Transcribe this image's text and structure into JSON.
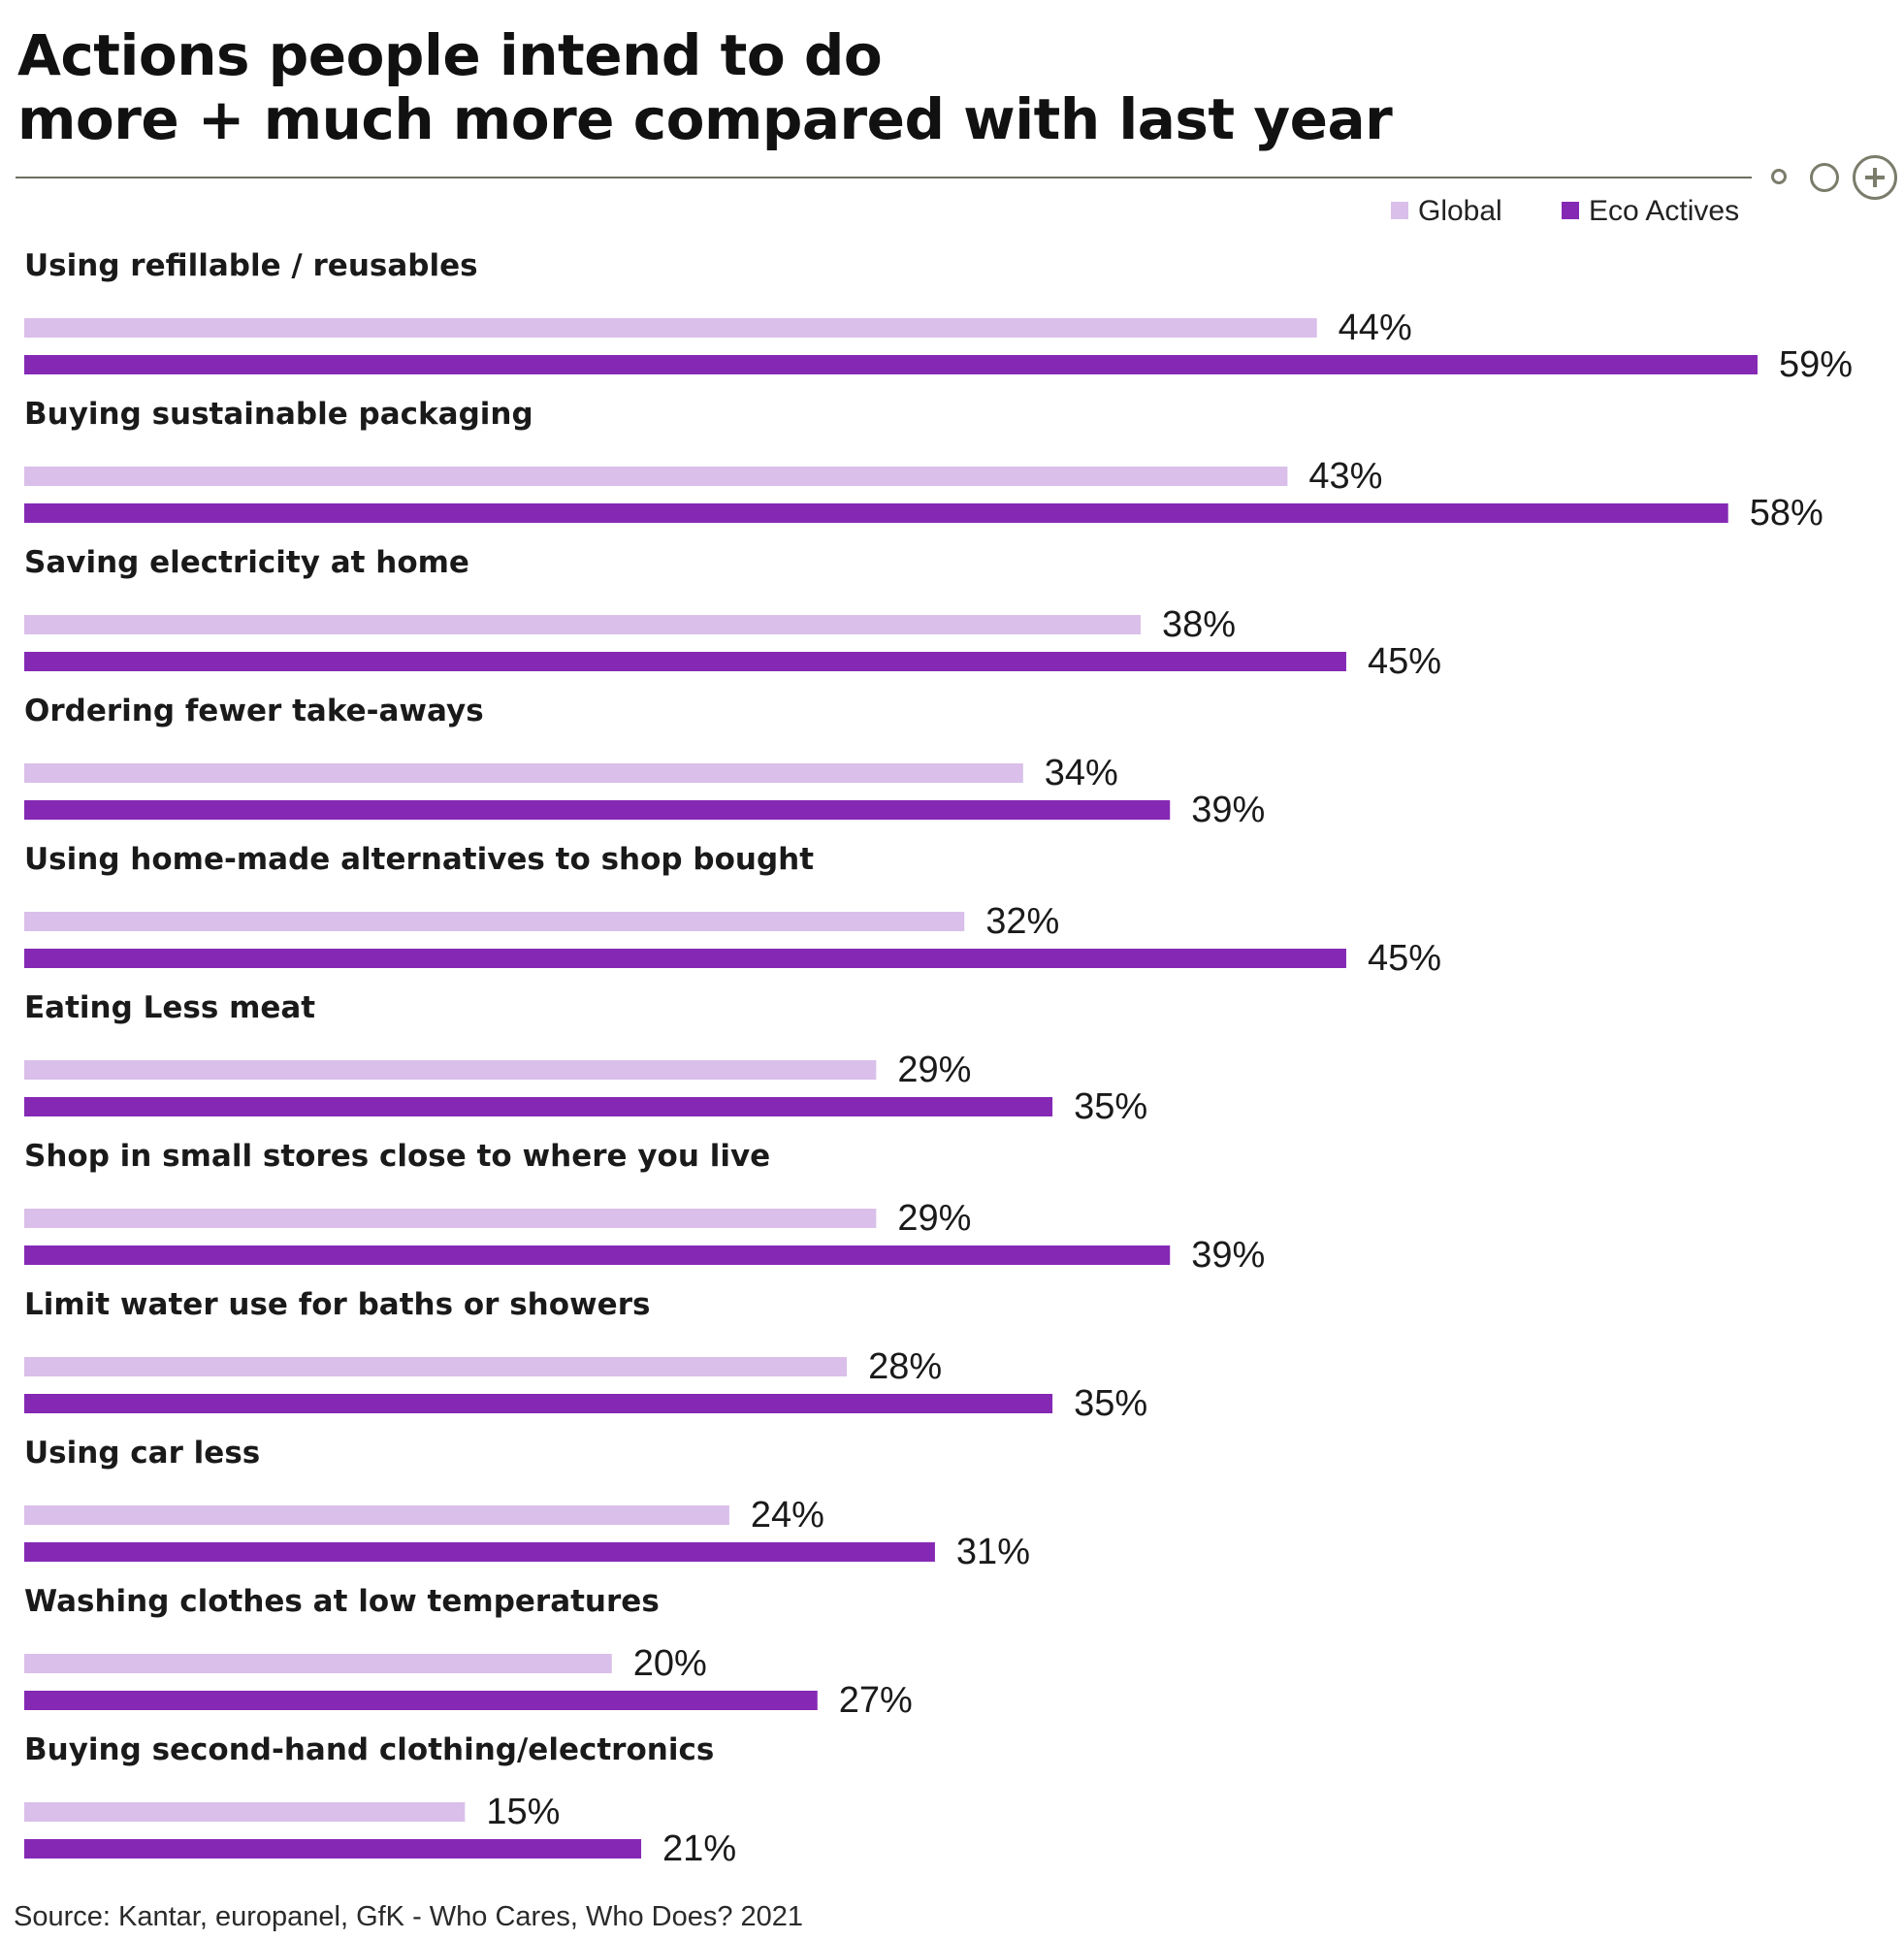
{
  "title_lines": [
    "Actions people intend to do",
    "more + much more compared with last year"
  ],
  "source": "Source: Kantar, europanel, GfK - Who Cares, Who Does? 2021",
  "colors": {
    "global": "#d9bfe9",
    "eco": "#8529b5",
    "text": "#1a1a1a"
  },
  "nav_icons": [
    "circle-small-icon",
    "circle-medium-icon",
    "plus-circle-icon"
  ],
  "chart_data": {
    "type": "bar",
    "orientation": "horizontal",
    "categories": [
      "Using refillable / reusables",
      "Buying sustainable packaging",
      "Saving electricity at home",
      "Ordering fewer take-aways",
      "Using home-made alternatives to shop bought",
      "Eating Less meat",
      "Shop in small stores close to where you live",
      "Limit water use for baths or showers",
      "Using car less",
      "Washing clothes at low temperatures",
      "Buying second-hand clothing/electronics"
    ],
    "series": [
      {
        "name": "Global",
        "values": [
          44,
          43,
          38,
          34,
          32,
          29,
          29,
          28,
          24,
          20,
          15
        ],
        "labels": [
          "44%",
          "43%",
          "38%",
          "34%",
          "32%",
          "29%",
          "29%",
          "28%",
          "24%",
          "20%",
          "15%"
        ]
      },
      {
        "name": "Eco Actives",
        "values": [
          59,
          58,
          45,
          39,
          45,
          35,
          39,
          35,
          31,
          27,
          21
        ],
        "labels": [
          "59%",
          "58%",
          "45%",
          "39%",
          "45%",
          "35%",
          "39%",
          "35%",
          "31%",
          "27%",
          "21%"
        ]
      }
    ],
    "unit": "%",
    "xlim": [
      0,
      59
    ],
    "grid": false,
    "legend_position": "top-right"
  }
}
